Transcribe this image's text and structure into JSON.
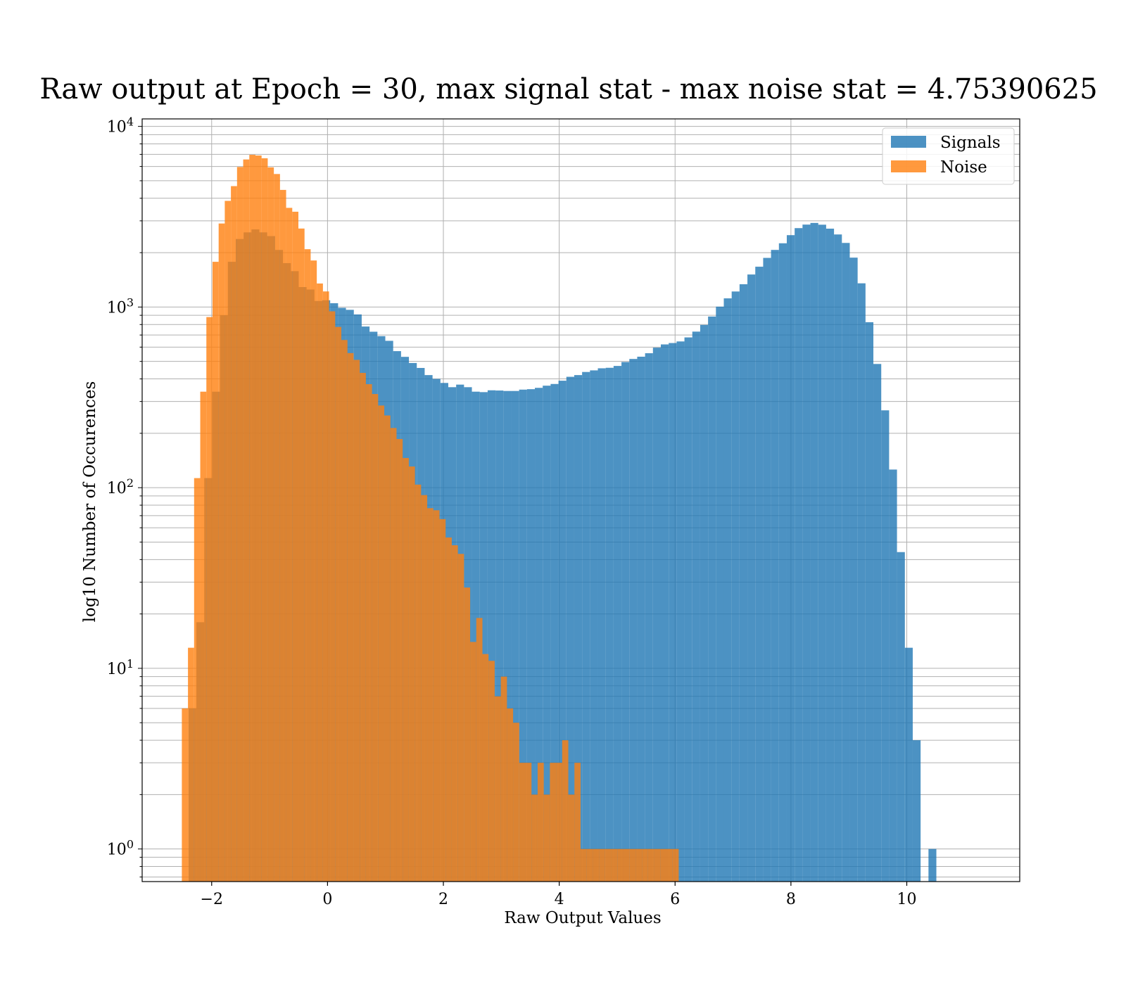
{
  "chart_data": {
    "type": "bar",
    "subtype": "overlaid-histogram",
    "title": "Raw output at Epoch = 30, max signal stat - max noise stat = 4.75390625",
    "xlabel": "Raw Output Values",
    "ylabel": "log10 Number of Occurences",
    "xlim": [
      -3.2,
      11.95
    ],
    "ylim": [
      0.66,
      11000
    ],
    "yscale": "log",
    "grid": true,
    "legend": "top-right",
    "x_ticks": [
      -2,
      0,
      2,
      4,
      6,
      8,
      10
    ],
    "x_tick_labels": [
      "−2",
      "0",
      "2",
      "4",
      "6",
      "8",
      "10"
    ],
    "y_ticks": [
      1,
      10,
      100,
      1000,
      10000
    ],
    "y_tick_labels": [
      {
        "base": "10",
        "exp": "0"
      },
      {
        "base": "10",
        "exp": "1"
      },
      {
        "base": "10",
        "exp": "2"
      },
      {
        "base": "10",
        "exp": "3"
      },
      {
        "base": "10",
        "exp": "4"
      }
    ],
    "series": [
      {
        "name": "Signals",
        "color": "#1f77b4",
        "opacity": 0.8,
        "bin_start": -2.4,
        "bin_width": 0.1359,
        "counts": [
          6,
          18,
          113,
          340,
          900,
          1780,
          2380,
          2590,
          2690,
          2590,
          2470,
          2070,
          1750,
          1580,
          1290,
          1250,
          1080,
          1090,
          1050,
          990,
          965,
          910,
          780,
          730,
          690,
          650,
          570,
          530,
          490,
          460,
          420,
          400,
          380,
          360,
          372,
          360,
          340,
          338,
          346,
          345,
          343,
          343,
          349,
          351,
          357,
          367,
          375,
          391,
          411,
          420,
          437,
          446,
          458,
          461,
          472,
          496,
          516,
          531,
          555,
          596,
          621,
          632,
          645,
          679,
          731,
          796,
          886,
          1005,
          1117,
          1219,
          1337,
          1514,
          1672,
          1871,
          2071,
          2254,
          2500,
          2734,
          2860,
          2921,
          2856,
          2716,
          2522,
          2264,
          1877,
          1353,
          824,
          484,
          268,
          126,
          44,
          13,
          4,
          0,
          1
        ]
      },
      {
        "name": "Noise",
        "color": "#ff7f0e",
        "opacity": 0.8,
        "bin_start": -2.515,
        "bin_width": 0.1059,
        "counts": [
          6,
          13,
          113,
          340,
          880,
          1780,
          2900,
          3870,
          4670,
          5960,
          6560,
          6960,
          6900,
          6660,
          5930,
          5450,
          4450,
          3540,
          3370,
          2720,
          2090,
          1810,
          1350,
          1220,
          947,
          776,
          657,
          556,
          510,
          432,
          374,
          330,
          285,
          251,
          214,
          186,
          146,
          131,
          104,
          91,
          77,
          75,
          67,
          53,
          48,
          43,
          28,
          14,
          19,
          12,
          11,
          7,
          9,
          6,
          5,
          3,
          3,
          2,
          3,
          2,
          3,
          3,
          4,
          2,
          3,
          1,
          1,
          1,
          1,
          1,
          1,
          1,
          1,
          1,
          1,
          1,
          1,
          1,
          1,
          1,
          1
        ]
      }
    ]
  }
}
